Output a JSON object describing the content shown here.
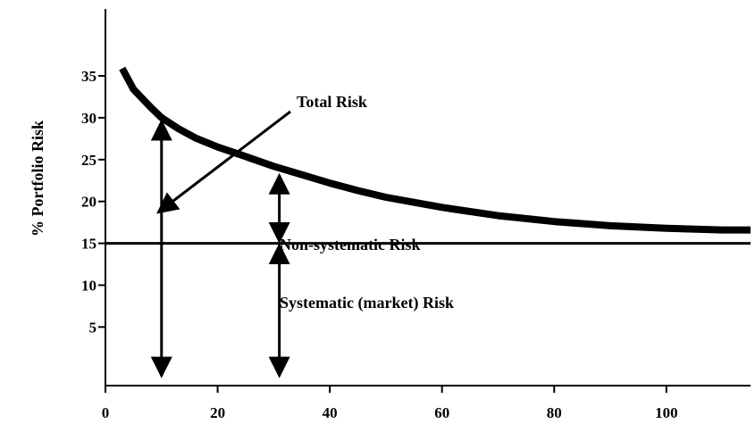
{
  "chart_data": {
    "type": "line",
    "title": "",
    "xlabel": "",
    "ylabel": "% Portfolio Risk",
    "xlim": [
      0,
      115
    ],
    "ylim": [
      -2,
      43
    ],
    "x_ticks": [
      0,
      20,
      40,
      60,
      80,
      100
    ],
    "y_ticks": [
      5,
      10,
      15,
      20,
      25,
      30,
      35
    ],
    "grid": false,
    "legend": "none",
    "series": [
      {
        "x": [
          3,
          5,
          8,
          10,
          13,
          16,
          20,
          24,
          30,
          35,
          40,
          45,
          50,
          60,
          70,
          80,
          90,
          100,
          110,
          115
        ],
        "y": [
          35.9,
          33.4,
          31.3,
          30.0,
          28.7,
          27.6,
          26.5,
          25.6,
          24.2,
          23.2,
          22.2,
          21.3,
          20.5,
          19.3,
          18.3,
          17.6,
          17.1,
          16.8,
          16.6,
          16.6
        ]
      }
    ],
    "reference_lines": [
      {
        "axis": "y",
        "value": 15
      }
    ],
    "annotations": {
      "total_risk": "Total Risk",
      "non_systematic": "Non-systematic Risk",
      "systematic": "Systematic (market) Risk"
    },
    "colors": {
      "curve": "#000000",
      "axes": "#000000",
      "background": "#ffffff"
    }
  }
}
